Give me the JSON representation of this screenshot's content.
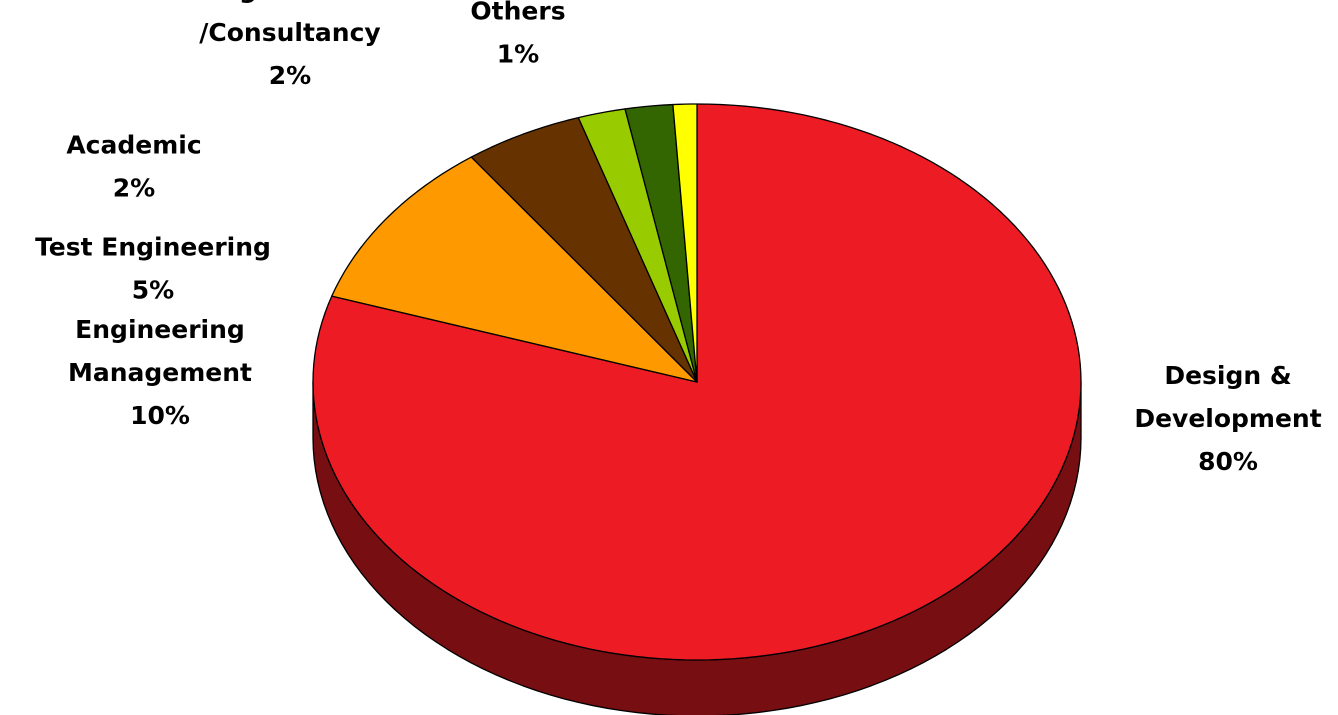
{
  "chart_data": {
    "type": "pie",
    "style": "3d",
    "start": "top",
    "direction": "clockwise",
    "title": "",
    "slices": [
      {
        "label_lines": [
          "Design &",
          "Development"
        ],
        "percent_label": "80%",
        "value": 80,
        "color": "#ED1C24"
      },
      {
        "label_lines": [
          "Engineering",
          "Management"
        ],
        "percent_label": "10%",
        "value": 10,
        "color": "#FF9900"
      },
      {
        "label_lines": [
          "Test Engineering"
        ],
        "percent_label": "5%",
        "value": 5,
        "color": "#663300"
      },
      {
        "label_lines": [
          "Academic"
        ],
        "percent_label": "2%",
        "value": 2,
        "color": "#99CC00"
      },
      {
        "label_lines": [
          "Design Services",
          "/Consultancy"
        ],
        "percent_label": "2%",
        "value": 2,
        "color": "#336600"
      },
      {
        "label_lines": [
          "Others"
        ],
        "percent_label": "1%",
        "value": 1,
        "color": "#FFFF00"
      }
    ]
  }
}
